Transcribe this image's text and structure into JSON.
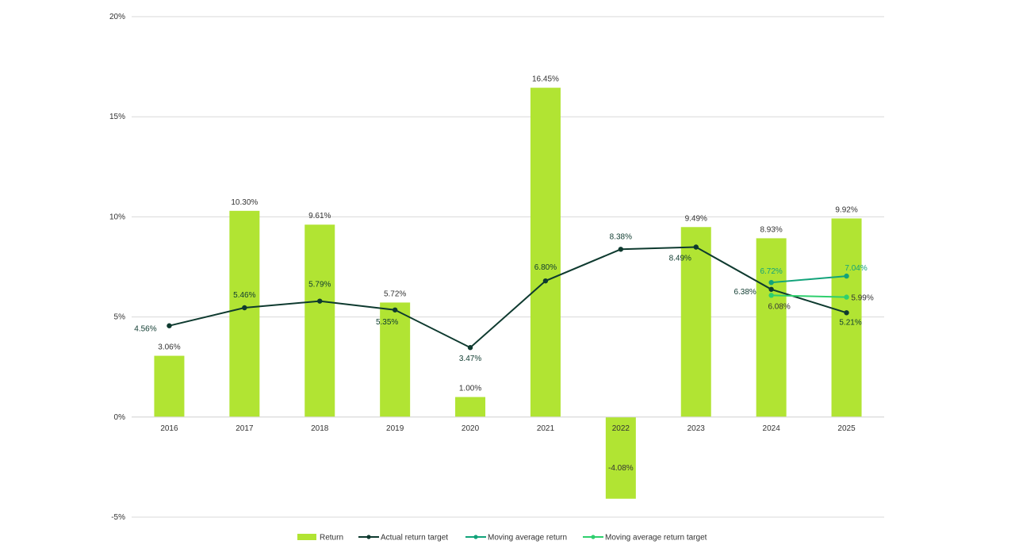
{
  "chart_data": {
    "type": "bar",
    "categories": [
      "2016",
      "2017",
      "2018",
      "2019",
      "2020",
      "2021",
      "2022",
      "2023",
      "2024",
      "2025"
    ],
    "ylim": [
      -5,
      20
    ],
    "yticks": [
      -5,
      0,
      5,
      10,
      15,
      20
    ],
    "ytick_labels": [
      "-5%",
      "0%",
      "5%",
      "10%",
      "15%",
      "20%"
    ],
    "grid": true,
    "legend_position": "bottom",
    "bar_series": {
      "name": "Return",
      "color": "#b1e433",
      "values": [
        3.06,
        10.3,
        9.61,
        5.72,
        1.0,
        16.45,
        -4.08,
        9.49,
        8.93,
        9.92
      ],
      "labels": [
        "3.06%",
        "10.30%",
        "9.61%",
        "5.72%",
        "1.00%",
        "16.45%",
        "-4.08%",
        "9.49%",
        "8.93%",
        "9.92%"
      ]
    },
    "line_series": [
      {
        "name": "Actual return target",
        "color": "#0e3a2f",
        "values": [
          4.56,
          5.46,
          5.79,
          5.35,
          3.47,
          6.8,
          8.38,
          8.49,
          6.38,
          5.21
        ],
        "labels": [
          "4.56%",
          "5.46%",
          "5.79%",
          "5.35%",
          "3.47%",
          "6.80%",
          "8.38%",
          "8.49%",
          "6.38%",
          "5.21%"
        ]
      },
      {
        "name": "Moving average return",
        "color": "#12a37a",
        "values": [
          null,
          null,
          null,
          null,
          null,
          null,
          null,
          null,
          6.72,
          7.04
        ],
        "labels": [
          null,
          null,
          null,
          null,
          null,
          null,
          null,
          null,
          "6.72%",
          "7.04%"
        ]
      },
      {
        "name": "Moving average return target",
        "color": "#2fcf6e",
        "values": [
          null,
          null,
          null,
          null,
          null,
          null,
          null,
          null,
          6.08,
          5.99
        ],
        "labels": [
          null,
          null,
          null,
          null,
          null,
          null,
          null,
          null,
          "6.08%",
          "5.99%"
        ]
      }
    ]
  }
}
